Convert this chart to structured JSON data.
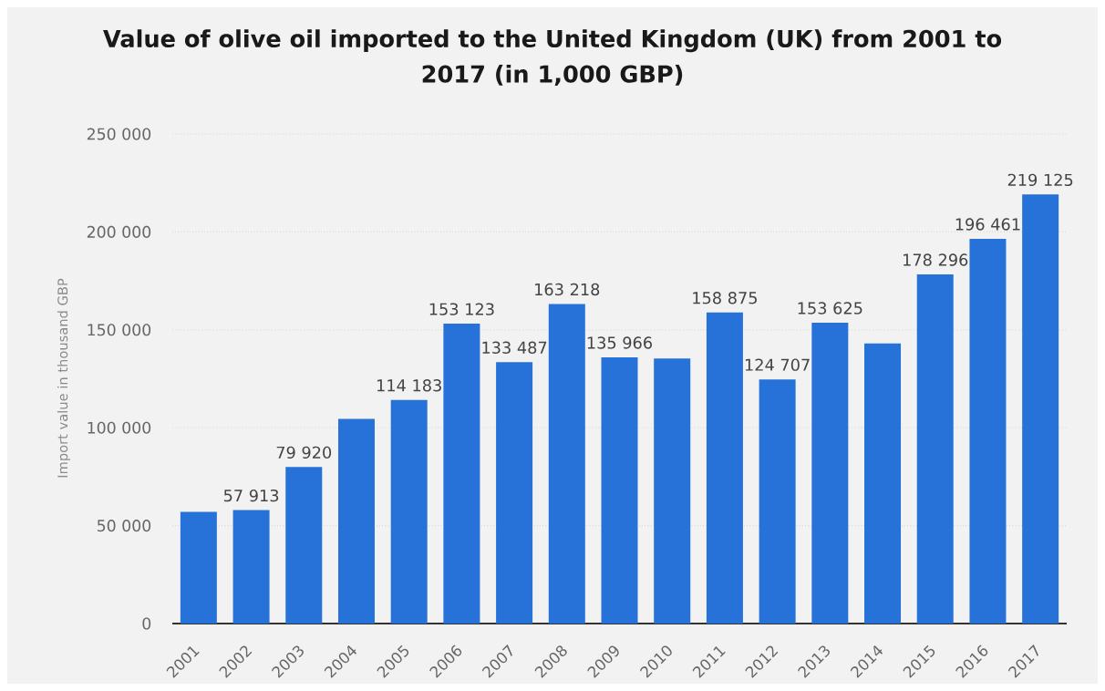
{
  "chart_data": {
    "type": "bar",
    "title": "Value of olive oil imported to the United Kingdom (UK) from 2001 to 2017 (in 1,000 GBP)",
    "ylabel": "Import value in thousand GBP",
    "categories": [
      "2001",
      "2002",
      "2003",
      "2004",
      "2005",
      "2006",
      "2007",
      "2008",
      "2009",
      "2010",
      "2011",
      "2012",
      "2013",
      "2014",
      "2015",
      "2016",
      "2017"
    ],
    "values": [
      57000,
      57913,
      79920,
      104500,
      114183,
      153123,
      133487,
      163218,
      135966,
      135300,
      158875,
      124707,
      153625,
      143000,
      178296,
      196461,
      219125
    ],
    "value_labels": [
      null,
      "57 913",
      "79 920",
      null,
      "114 183",
      "153 123",
      "133 487",
      "163 218",
      "135 966",
      null,
      "158 875",
      "124 707",
      "153 625",
      null,
      "178 296",
      "196 461",
      "219 125"
    ],
    "color": "#2672d8",
    "ylim": [
      0,
      250000
    ],
    "yticks": [
      0,
      {
        "value": 50000,
        "label": "50 000"
      },
      {
        "value": 100000,
        "label": "100 000"
      },
      {
        "value": 150000,
        "label": "150 000"
      },
      {
        "value": 200000,
        "label": "200 000"
      },
      {
        "value": 250000,
        "label": "250 000"
      }
    ],
    "grid": "y"
  }
}
